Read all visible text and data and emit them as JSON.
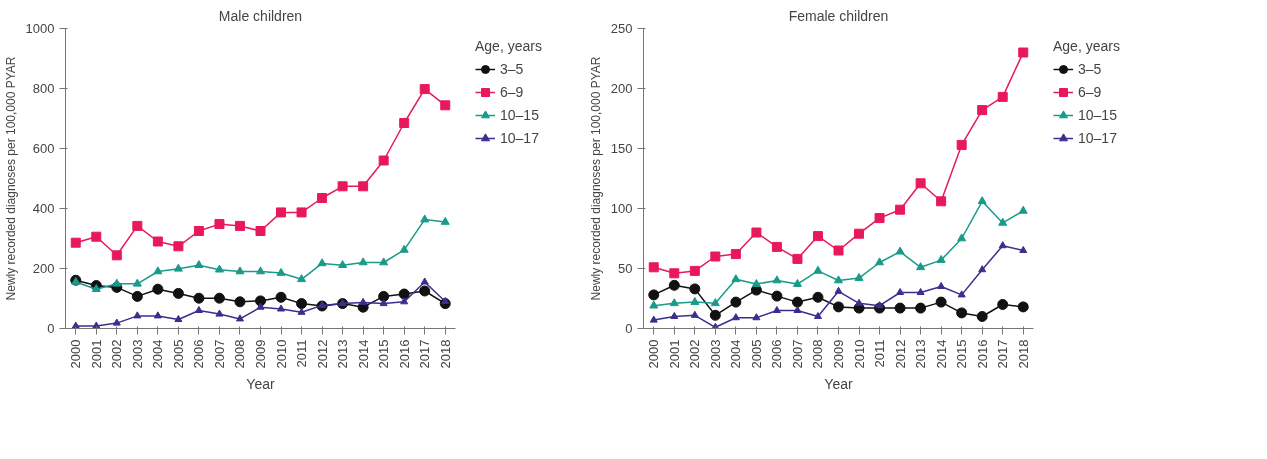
{
  "chart_data": [
    {
      "type": "line",
      "title": "Male children",
      "xlabel": "Year",
      "ylabel": "Newly recorded diagnoses per 100,000 PYAR",
      "legend_title": "Age, years",
      "legend": "right",
      "grid": false,
      "line_style": "solid",
      "categories": [
        "2000",
        "2001",
        "2002",
        "2003",
        "2004",
        "2005",
        "2006",
        "2007",
        "2008",
        "2009",
        "2010",
        "2011",
        "2012",
        "2013",
        "2014",
        "2015",
        "2016",
        "2017",
        "2018"
      ],
      "ylim": [
        0,
        1000
      ],
      "yticks": [
        0,
        200,
        400,
        600,
        800,
        1000
      ],
      "series": [
        {
          "name": "3–5",
          "color": "#111111",
          "marker": "circle",
          "values": [
            161,
            143,
            137,
            107,
            131,
            117,
            101,
            101,
            89,
            92,
            104,
            83,
            75,
            83,
            71,
            107,
            115,
            125,
            83
          ]
        },
        {
          "name": "6–9",
          "color": "#e8195a",
          "marker": "square",
          "values": [
            286,
            306,
            244,
            342,
            290,
            274,
            325,
            348,
            342,
            325,
            387,
            387,
            435,
            474,
            474,
            560,
            685,
            798,
            744
          ]
        },
        {
          "name": "10–15",
          "color": "#1a9a8a",
          "marker": "triangle",
          "values": [
            155,
            131,
            149,
            149,
            190,
            199,
            211,
            196,
            190,
            190,
            185,
            164,
            217,
            211,
            220,
            220,
            262,
            363,
            355
          ]
        },
        {
          "name": "10–17",
          "color": "#3a2f8f",
          "marker": "triangle",
          "values": [
            8,
            8,
            18,
            42,
            42,
            30,
            60,
            48,
            32,
            71,
            65,
            54,
            77,
            83,
            87,
            83,
            89,
            155,
            90
          ]
        }
      ]
    },
    {
      "type": "line",
      "title": "Female children",
      "xlabel": "Year",
      "ylabel": "Newly recorded diagnoses per 100,000 PYAR",
      "legend_title": "Age, years",
      "legend": "right",
      "grid": false,
      "line_style": "solid",
      "categories": [
        "2000",
        "2001",
        "2002",
        "2003",
        "2004",
        "2005",
        "2006",
        "2007",
        "2008",
        "2009",
        "2010",
        "2011",
        "2012",
        "2013",
        "2014",
        "2015",
        "2016",
        "2017",
        "2018"
      ],
      "ylim": [
        0,
        250
      ],
      "yticks": [
        0,
        50,
        100,
        150,
        200,
        250
      ],
      "series": [
        {
          "name": "3–5",
          "color": "#111111",
          "marker": "circle",
          "values": [
            28,
            36,
            33,
            11,
            22,
            32,
            27,
            22,
            26,
            18,
            17,
            17,
            17,
            17,
            22,
            13,
            10,
            20,
            18
          ]
        },
        {
          "name": "6–9",
          "color": "#e8195a",
          "marker": "square",
          "values": [
            51,
            46,
            48,
            60,
            62,
            80,
            68,
            58,
            77,
            65,
            79,
            92,
            99,
            121,
            106,
            153,
            182,
            193,
            230
          ]
        },
        {
          "name": "10–15",
          "color": "#1a9a8a",
          "marker": "triangle",
          "values": [
            19,
            21,
            22,
            21,
            41,
            37,
            40,
            37,
            48,
            40,
            42,
            55,
            64,
            51,
            57,
            75,
            106,
            88,
            98
          ]
        },
        {
          "name": "10–17",
          "color": "#3a2f8f",
          "marker": "triangle",
          "values": [
            7,
            10,
            11,
            1,
            9,
            9,
            15,
            15,
            10,
            31,
            21,
            19,
            30,
            30,
            35,
            28,
            49,
            69,
            65
          ]
        }
      ]
    }
  ]
}
